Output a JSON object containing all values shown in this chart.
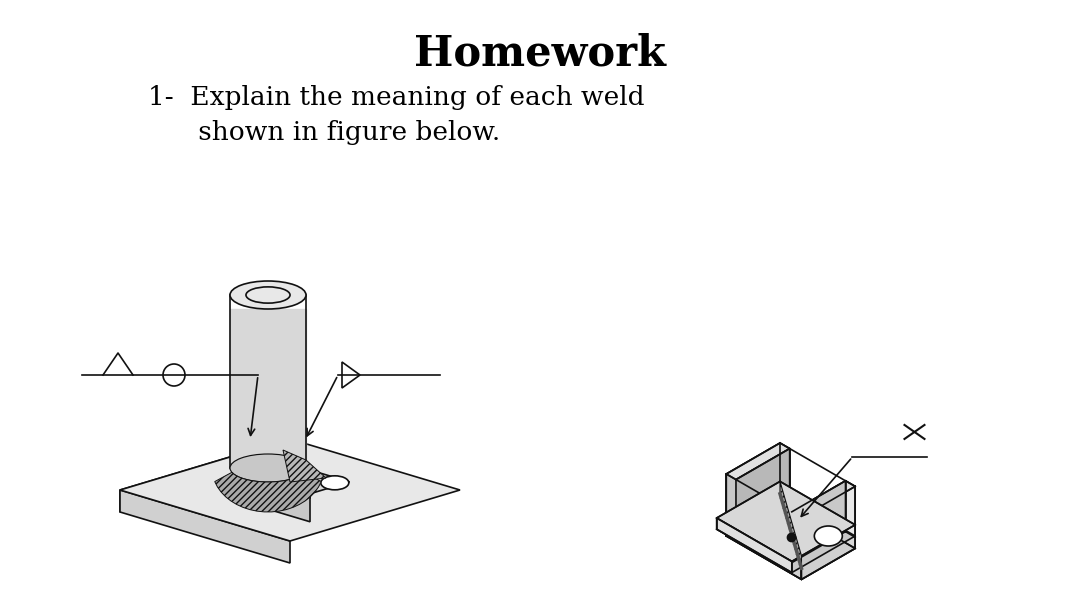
{
  "title": "Homework",
  "title_fontsize": 30,
  "title_fontweight": "bold",
  "title_fontfamily": "DejaVu Serif",
  "line1": "1-  Explain the meaning of each weld",
  "line2": "      shown in figure below.",
  "text_fontsize": 19,
  "text_fontfamily": "DejaVu Serif",
  "bg_color": "#ffffff",
  "text_color": "#000000",
  "fig_width": 10.8,
  "fig_height": 6.08,
  "dpi": 100,
  "lc": "#111111",
  "lw": 1.2
}
